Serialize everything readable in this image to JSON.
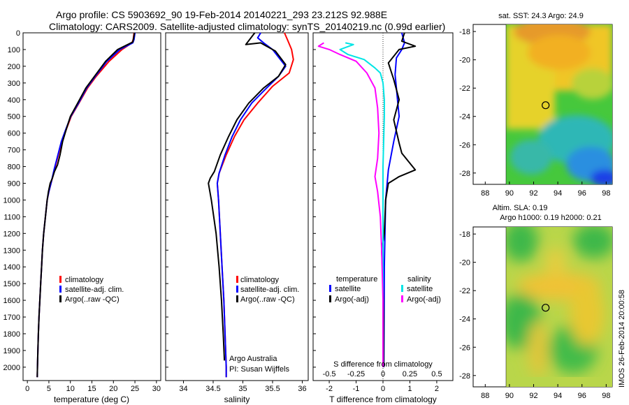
{
  "header": {
    "line1": "Argo profile: CS 5903692_90 19-Feb-2014 20140221_293 23.212S 92.988E",
    "line2": "Climatology: CARS2009. Satellite-adjusted climatology: synTS_20140219.nc (0.99d earlier)"
  },
  "colors": {
    "climatology": "#ff0000",
    "satellite": "#0000ff",
    "argo": "#000000",
    "sal_satellite": "#00e5e5",
    "sal_argo": "#ff00ff"
  },
  "chart_data": [
    {
      "type": "line",
      "id": "temperature",
      "xlabel": "temperature (deg C)",
      "xlim": [
        -1,
        31
      ],
      "ylim": [
        2080,
        0
      ],
      "xticks": [
        0,
        5,
        10,
        15,
        20,
        25,
        30
      ],
      "yticks": [
        0,
        100,
        200,
        300,
        400,
        500,
        600,
        700,
        800,
        900,
        1000,
        1100,
        1200,
        1300,
        1400,
        1500,
        1600,
        1700,
        1800,
        1900,
        2000
      ],
      "legend": [
        "climatology",
        "satellite-adj. clim.",
        "Argo(..raw -QC)"
      ],
      "series": [
        {
          "name": "climatology",
          "color": "#ff0000",
          "points": [
            [
              24.8,
              0
            ],
            [
              24.6,
              40
            ],
            [
              24.3,
              60
            ],
            [
              22,
              100
            ],
            [
              19,
              170
            ],
            [
              16,
              260
            ],
            [
              14,
              330
            ],
            [
              12,
              420
            ],
            [
              10.2,
              500
            ],
            [
              9,
              580
            ],
            [
              8,
              650
            ],
            [
              7.2,
              730
            ],
            [
              6.3,
              820
            ],
            [
              5.5,
              900
            ],
            [
              5,
              950
            ],
            [
              4.6,
              1000
            ],
            [
              4.2,
              1100
            ],
            [
              3.8,
              1200
            ],
            [
              3.5,
              1300
            ],
            [
              3.3,
              1400
            ],
            [
              3.1,
              1500
            ],
            [
              2.9,
              1600
            ],
            [
              2.7,
              1700
            ],
            [
              2.55,
              1800
            ],
            [
              2.45,
              1900
            ],
            [
              2.35,
              2000
            ],
            [
              2.3,
              2060
            ]
          ]
        },
        {
          "name": "satellite-adj. clim.",
          "color": "#0000ff",
          "points": [
            [
              25,
              0
            ],
            [
              24.8,
              40
            ],
            [
              24.5,
              60
            ],
            [
              21.5,
              100
            ],
            [
              18.5,
              170
            ],
            [
              15.8,
              260
            ],
            [
              13.8,
              330
            ],
            [
              11.9,
              420
            ],
            [
              10.1,
              500
            ],
            [
              8.9,
              580
            ],
            [
              7.9,
              650
            ],
            [
              7.1,
              730
            ],
            [
              6.2,
              820
            ],
            [
              5.5,
              900
            ],
            [
              5,
              950
            ],
            [
              4.6,
              1000
            ],
            [
              4.2,
              1100
            ],
            [
              3.8,
              1200
            ],
            [
              3.5,
              1300
            ],
            [
              3.3,
              1400
            ],
            [
              3.1,
              1500
            ],
            [
              2.9,
              1600
            ],
            [
              2.7,
              1700
            ],
            [
              2.55,
              1800
            ],
            [
              2.45,
              1900
            ],
            [
              2.35,
              2000
            ],
            [
              2.3,
              2060
            ]
          ]
        },
        {
          "name": "Argo(..raw -QC)",
          "color": "#000000",
          "points": [
            [
              24.9,
              0
            ],
            [
              24.7,
              30
            ],
            [
              24.5,
              55
            ],
            [
              21,
              100
            ],
            [
              18.2,
              170
            ],
            [
              15.6,
              260
            ],
            [
              13.6,
              330
            ],
            [
              11.7,
              420
            ],
            [
              10,
              500
            ],
            [
              9,
              580
            ],
            [
              8.2,
              650
            ],
            [
              7.6,
              730
            ],
            [
              7,
              790
            ],
            [
              6.3,
              830
            ],
            [
              5.8,
              870
            ],
            [
              5.3,
              900
            ],
            [
              4.9,
              950
            ],
            [
              4.6,
              1000
            ],
            [
              4.2,
              1100
            ],
            [
              3.8,
              1200
            ],
            [
              3.5,
              1300
            ],
            [
              3.3,
              1400
            ],
            [
              3.1,
              1500
            ],
            [
              2.9,
              1600
            ],
            [
              2.7,
              1700
            ],
            [
              2.55,
              1800
            ],
            [
              2.45,
              1900
            ],
            [
              2.35,
              2000
            ],
            [
              2.3,
              2060
            ]
          ]
        }
      ]
    },
    {
      "type": "line",
      "id": "salinity",
      "xlabel": "salinity",
      "xlim": [
        33.7,
        36.1
      ],
      "ylim": [
        2080,
        0
      ],
      "xticks": [
        34,
        34.5,
        35,
        35.5,
        36
      ],
      "xtick_labels": [
        "34",
        "34.5",
        "35",
        "35.5",
        "36"
      ],
      "legend": [
        "climatology",
        "satellite-adj. clim.",
        "Argo(..raw -QC)"
      ],
      "credit": [
        "Argo Australia",
        "PI: Susan Wijffels"
      ],
      "series": [
        {
          "name": "climatology",
          "color": "#ff0000",
          "points": [
            [
              35.7,
              0
            ],
            [
              35.75,
              40
            ],
            [
              35.82,
              100
            ],
            [
              35.85,
              160
            ],
            [
              35.78,
              240
            ],
            [
              35.5,
              320
            ],
            [
              35.25,
              420
            ],
            [
              35.02,
              520
            ],
            [
              34.86,
              620
            ],
            [
              34.72,
              730
            ],
            [
              34.6,
              840
            ],
            [
              34.57,
              900
            ],
            [
              34.59,
              1000
            ],
            [
              34.62,
              1200
            ],
            [
              34.65,
              1400
            ],
            [
              34.68,
              1600
            ],
            [
              34.7,
              1800
            ],
            [
              34.72,
              2000
            ],
            [
              34.72,
              2060
            ]
          ]
        },
        {
          "name": "satellite-adj. clim.",
          "color": "#0000ff",
          "points": [
            [
              35.3,
              0
            ],
            [
              35.25,
              30
            ],
            [
              35.35,
              60
            ],
            [
              35.5,
              100
            ],
            [
              35.72,
              200
            ],
            [
              35.6,
              260
            ],
            [
              35.4,
              330
            ],
            [
              35.15,
              420
            ],
            [
              34.96,
              520
            ],
            [
              34.82,
              620
            ],
            [
              34.7,
              730
            ],
            [
              34.6,
              840
            ],
            [
              34.57,
              900
            ],
            [
              34.59,
              1000
            ],
            [
              34.62,
              1200
            ],
            [
              34.65,
              1400
            ],
            [
              34.68,
              1600
            ],
            [
              34.7,
              1800
            ],
            [
              34.72,
              2000
            ],
            [
              34.72,
              2060
            ]
          ]
        },
        {
          "name": "Argo(..raw -QC)",
          "color": "#000000",
          "points": [
            [
              35.2,
              0
            ],
            [
              35.05,
              70
            ],
            [
              35.3,
              60
            ],
            [
              35.55,
              110
            ],
            [
              35.72,
              190
            ],
            [
              35.6,
              260
            ],
            [
              35.35,
              330
            ],
            [
              35.1,
              420
            ],
            [
              34.9,
              520
            ],
            [
              34.76,
              620
            ],
            [
              34.62,
              730
            ],
            [
              34.52,
              830
            ],
            [
              34.45,
              870
            ],
            [
              34.42,
              900
            ],
            [
              34.47,
              1000
            ],
            [
              34.55,
              1200
            ],
            [
              34.6,
              1400
            ],
            [
              34.64,
              1600
            ],
            [
              34.67,
              1800
            ],
            [
              34.69,
              1960
            ]
          ]
        }
      ]
    },
    {
      "type": "line",
      "id": "difference",
      "xlabel": "T difference from climatology",
      "xlabel2": "S difference from climatology",
      "xlim": [
        -2.6,
        2.6
      ],
      "ylim": [
        2080,
        0
      ],
      "xticks": [
        -2,
        -1,
        0,
        1,
        2
      ],
      "xticks2": [
        -0.5,
        -0.25,
        0,
        0.25,
        0.5
      ],
      "xtick_labels2": [
        "-0.5",
        "-0.25",
        "0",
        "0.25",
        "0.5"
      ],
      "legend_titles": [
        "temperature",
        "salinity"
      ],
      "legend_t": [
        "satellite",
        "Argo(-adj)"
      ],
      "legend_s": [
        "satellite",
        "Argo(-adj)"
      ],
      "series": [
        {
          "name": "temperature satellite",
          "color": "#0000ff",
          "points": [
            [
              0.7,
              0
            ],
            [
              0.8,
              60
            ],
            [
              0.7,
              100
            ],
            [
              0.5,
              150
            ],
            [
              0.45,
              250
            ],
            [
              0.5,
              330
            ],
            [
              0.55,
              420
            ],
            [
              0.6,
              500
            ],
            [
              0.4,
              650
            ],
            [
              0.2,
              820
            ],
            [
              0.1,
              1000
            ],
            [
              0.05,
              1400
            ],
            [
              0.03,
              2000
            ]
          ]
        },
        {
          "name": "temperature Argo(-adj)",
          "color": "#000000",
          "points": [
            [
              0.8,
              0
            ],
            [
              0.7,
              50
            ],
            [
              1.2,
              80
            ],
            [
              0.6,
              100
            ],
            [
              0.2,
              180
            ],
            [
              0.4,
              280
            ],
            [
              0.6,
              400
            ],
            [
              0.4,
              520
            ],
            [
              0.6,
              660
            ],
            [
              0.7,
              720
            ],
            [
              1.0,
              780
            ],
            [
              1.2,
              820
            ],
            [
              0.6,
              860
            ],
            [
              0.2,
              900
            ],
            [
              0.1,
              1000
            ],
            [
              0.05,
              1200
            ],
            [
              -0.05,
              1300
            ],
            [
              0,
              1500
            ],
            [
              0.02,
              1700
            ],
            [
              0.02,
              2000
            ]
          ]
        },
        {
          "name": "salinity satellite",
          "color": "#00e5e5",
          "points": [
            [
              -1.4,
              60
            ],
            [
              -1.1,
              70
            ],
            [
              -1.6,
              100
            ],
            [
              -1.3,
              130
            ],
            [
              -0.7,
              160
            ],
            [
              -0.3,
              210
            ],
            [
              -0.1,
              240
            ],
            [
              0,
              300
            ],
            [
              0.05,
              400
            ],
            [
              0.05,
              500
            ],
            [
              0,
              800
            ],
            [
              0,
              1200
            ],
            [
              0,
              2000
            ]
          ]
        },
        {
          "name": "salinity Argo(-adj)",
          "color": "#ff00ff",
          "points": [
            [
              -2.2,
              60
            ],
            [
              -2.4,
              80
            ],
            [
              -2.0,
              100
            ],
            [
              -1.6,
              130
            ],
            [
              -1.0,
              170
            ],
            [
              -0.6,
              240
            ],
            [
              -0.3,
              330
            ],
            [
              -0.2,
              450
            ],
            [
              -0.15,
              600
            ],
            [
              -0.2,
              750
            ],
            [
              -0.3,
              860
            ],
            [
              -0.2,
              950
            ],
            [
              -0.1,
              1100
            ],
            [
              -0.05,
              1300
            ],
            [
              0,
              1600
            ],
            [
              0,
              2000
            ]
          ]
        }
      ]
    },
    {
      "type": "heatmap",
      "id": "sst_map",
      "title": "sat. SST: 24.3 Argo: 24.9",
      "xlim": [
        87,
        98.5
      ],
      "ylim": [
        -28.8,
        -17.5
      ],
      "xticks": [
        88,
        90,
        92,
        94,
        96,
        98
      ],
      "yticks": [
        -18,
        -20,
        -22,
        -24,
        -26,
        -28
      ],
      "marker": [
        92.99,
        -23.21
      ]
    },
    {
      "type": "heatmap",
      "id": "sla_map",
      "title": "Altim. SLA: 0.19",
      "subtitle": "Argo h1000: 0.19 h2000: 0.21",
      "xlim": [
        87,
        98.5
      ],
      "ylim": [
        -28.8,
        -17.5
      ],
      "xticks": [
        88,
        90,
        92,
        94,
        96,
        98
      ],
      "yticks": [
        -18,
        -20,
        -22,
        -24,
        -26,
        -28
      ],
      "marker": [
        92.99,
        -23.21
      ]
    }
  ],
  "side_stamp": "IMOS 26-Feb-2014 20:00:58"
}
